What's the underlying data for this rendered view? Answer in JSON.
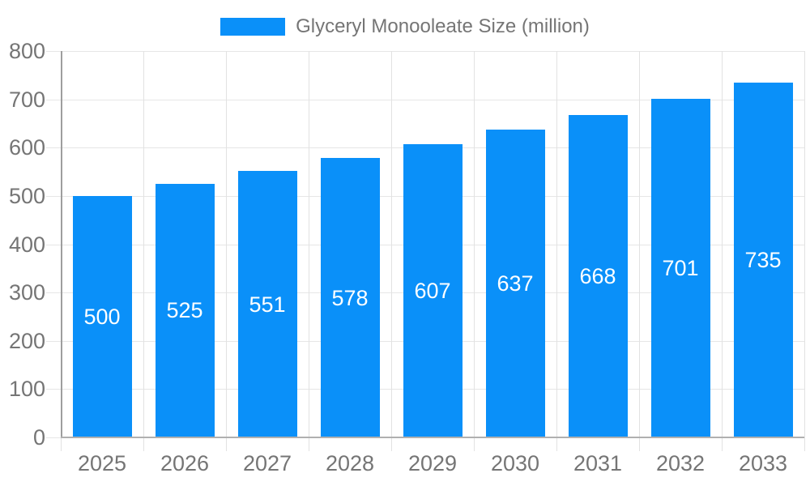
{
  "chart_data": {
    "type": "bar",
    "title": "Glyceryl Monooleate Size (million)",
    "categories": [
      "2025",
      "2026",
      "2027",
      "2028",
      "2029",
      "2030",
      "2031",
      "2032",
      "2033"
    ],
    "series": [
      {
        "name": "Glyceryl Monooleate Size (million)",
        "values": [
          500,
          525,
          551,
          578,
          607,
          637,
          668,
          701,
          735
        ]
      }
    ],
    "xlabel": "",
    "ylabel": "",
    "ylim": [
      0,
      800
    ],
    "ytick_step": 100,
    "ytick_labels": [
      "0",
      "100",
      "200",
      "300",
      "400",
      "500",
      "600",
      "700",
      "800"
    ],
    "grid": true,
    "legend_position": "top-center",
    "bar_labels_visible": true,
    "colors": {
      "bar": "#0a90f9",
      "bar_label": "#ffffff",
      "axis_label": "#757575",
      "legend_text": "#757575",
      "gridline": "#e6e6e6",
      "axis_line": "#b0b0b0",
      "background": "#ffffff"
    }
  },
  "legend": {
    "label": "Glyceryl Monooleate Size (million)",
    "swatch_color": "#0a90f9"
  }
}
